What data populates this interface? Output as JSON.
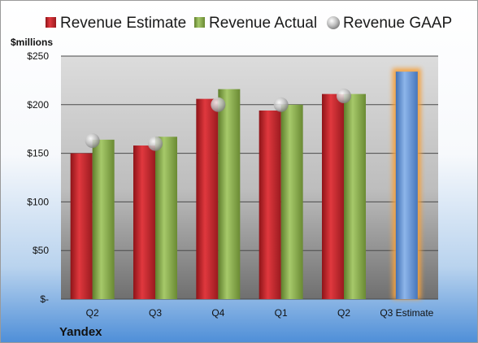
{
  "company": "Yandex",
  "unit_label": "$millions",
  "legend": {
    "estimate": "Revenue Estimate",
    "actual": "Revenue Actual",
    "gaap": "Revenue GAAP"
  },
  "colors": {
    "estimate": "#c9252b",
    "actual": "#8db151",
    "gaap": "#c0c0c0",
    "forecast": "#6d9ad8",
    "forecast_glow": "#f5a13c",
    "plot_top": "#dcdcdc",
    "plot_bottom": "#6f6f6f"
  },
  "chart_data": {
    "type": "bar",
    "categories": [
      "Q2",
      "Q3",
      "Q4",
      "Q1",
      "Q2",
      "Q3 Estimate"
    ],
    "series": [
      {
        "name": "Revenue Estimate",
        "values": [
          150,
          158,
          206,
          194,
          211,
          null
        ]
      },
      {
        "name": "Revenue Actual",
        "values": [
          164,
          167,
          216,
          200,
          211,
          null
        ]
      },
      {
        "name": "Revenue GAAP",
        "values": [
          163,
          160,
          200,
          200,
          209,
          null
        ]
      }
    ],
    "forecast": {
      "category": "Q3 Estimate",
      "value": 234
    },
    "ylim": [
      0,
      250
    ],
    "yticks": [
      0,
      50,
      100,
      150,
      200,
      250
    ],
    "ytick_labels": [
      "$-",
      "$50",
      "$100",
      "$150",
      "$200",
      "$250"
    ],
    "grid": true,
    "legend_position": "top"
  }
}
